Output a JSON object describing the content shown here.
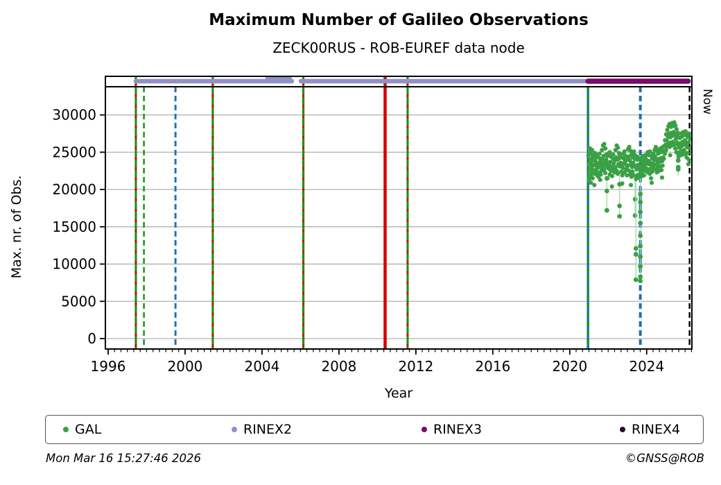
{
  "header": {
    "title": "Maximum Number of Galileo Observations",
    "subtitle": "ZECK00RUS - ROB-EUREF data node"
  },
  "footer": {
    "timestamp": "Mon Mar 16 15:27:46 2026",
    "credit": "©GNSS@ROB"
  },
  "legend": {
    "items": [
      {
        "label": "GAL",
        "color": "#3aa045"
      },
      {
        "label": "RINEX2",
        "color": "#9191c8"
      },
      {
        "label": "RINEX3",
        "color": "#7a0a6c"
      },
      {
        "label": "RINEX4",
        "color": "#2d0430"
      }
    ]
  },
  "chart_data": {
    "type": "scatter",
    "title": "Maximum Number of Galileo Observations",
    "subtitle": "ZECK00RUS - ROB-EUREF data node",
    "xlabel": "Year",
    "ylabel": "Max. nr. of Obs.",
    "xlim": [
      1995.856,
      2026.35
    ],
    "ylim": [
      0,
      33500
    ],
    "xticks": [
      1996,
      2000,
      2004,
      2008,
      2012,
      2016,
      2020,
      2024
    ],
    "yticks": [
      0,
      5000,
      10000,
      15000,
      20000,
      25000,
      30000
    ],
    "minor_tick_step_years": 0.3333,
    "grid": "horizontal-only",
    "grid_color": "#b0b0b0",
    "now_label": "Now",
    "now_year": 2026.23,
    "palette": {
      "gal": "#3aa045",
      "gal_faint": "#a9d9b0",
      "rinex2": "#9191c8",
      "rinex3": "#7a0a6c",
      "event_green": "#159415",
      "event_red": "#d40000",
      "event_blue": "#2071b5",
      "event_black": "#000000"
    },
    "events": [
      {
        "year": 1997.44,
        "type": "green-red-solid",
        "width": 3,
        "span": "outer"
      },
      {
        "year": 1997.86,
        "type": "green-dashed",
        "width": 2.5,
        "span": "axes"
      },
      {
        "year": 1999.5,
        "type": "blue-dashed",
        "width": 3,
        "span": "axes"
      },
      {
        "year": 2001.44,
        "type": "green-red-solid",
        "width": 3,
        "span": "outer"
      },
      {
        "year": 2006.15,
        "type": "green-red-solid",
        "width": 3,
        "span": "outer"
      },
      {
        "year": 2010.4,
        "type": "red-solid",
        "width": 4.5,
        "span": "outer"
      },
      {
        "year": 2011.57,
        "type": "green-red-solid",
        "width": 3,
        "span": "outer"
      },
      {
        "year": 2020.95,
        "type": "green-blue-dashed",
        "width": 3.5,
        "span": "axes"
      },
      {
        "year": 2023.67,
        "type": "blue-dashed",
        "width": 4,
        "span": "axes"
      },
      {
        "year": 2026.23,
        "type": "black-dashed",
        "width": 2.5,
        "span": "axes"
      }
    ],
    "top_bands": [
      {
        "name": "RINEX2",
        "color": "#9191c8",
        "stroke": 6.5,
        "segments": [
          {
            "from": 1997.44,
            "to": 2005.55,
            "dy": 0
          },
          {
            "from": 2004.29,
            "to": 2005.44,
            "dy": -3.5
          },
          {
            "from": 2006.02,
            "to": 2020.95,
            "dy": 0
          }
        ]
      },
      {
        "name": "RINEX3",
        "color": "#7a0a6c",
        "stroke": 7.5,
        "segments": [
          {
            "from": 2020.95,
            "to": 2026.16,
            "dy": 0
          }
        ]
      },
      {
        "name": "RINEX4",
        "color": "#2d0430",
        "stroke": 7.5,
        "segments": []
      }
    ],
    "gal_columns": [
      [
        2021.0,
        23400,
        22100,
        24600,
        21200,
        25200
      ],
      [
        2021.05,
        22800,
        24100,
        21600,
        25500
      ],
      [
        2021.1,
        23600,
        22300,
        24800,
        20900
      ],
      [
        2021.16,
        23100,
        24400,
        22000,
        25300
      ],
      [
        2021.22,
        22600,
        23900,
        21500,
        24700
      ],
      [
        2021.28,
        23300,
        22100,
        24500,
        20600
      ],
      [
        2021.34,
        23800,
        22500,
        24900
      ],
      [
        2021.4,
        23200,
        21900,
        24300,
        22800
      ],
      [
        2021.46,
        23500,
        22200,
        24600
      ],
      [
        2021.52,
        23000,
        24200,
        21700
      ],
      [
        2021.58,
        23700,
        22400,
        24800,
        21300
      ],
      [
        2021.64,
        23300,
        25300,
        22000
      ],
      [
        2021.7,
        24100,
        25900,
        22700,
        23500
      ],
      [
        2021.76,
        24500,
        26100,
        23100
      ],
      [
        2021.82,
        23900,
        25500,
        22600
      ],
      [
        2021.88,
        23400,
        24700,
        22200
      ],
      [
        2021.93,
        23000,
        21500,
        24000
      ],
      [
        2021.99,
        23600,
        22800,
        24500
      ],
      [
        2022.05,
        23200,
        22000,
        24800
      ],
      [
        2022.11,
        23700,
        22500,
        25000
      ],
      [
        2022.17,
        23100,
        21800,
        24400
      ],
      [
        2022.23,
        22800,
        24100,
        20400
      ],
      [
        2022.29,
        23500,
        22300,
        24700
      ],
      [
        2022.35,
        23900,
        25300,
        22700
      ],
      [
        2022.41,
        24300,
        25900,
        23000
      ],
      [
        2022.47,
        24000,
        25600,
        22500
      ],
      [
        2022.53,
        23400,
        24900,
        22100
      ],
      [
        2022.59,
        23100,
        20700,
        24200
      ],
      [
        2022.64,
        23600,
        22400,
        24600
      ],
      [
        2022.7,
        23200,
        21900,
        24300
      ],
      [
        2022.76,
        22900,
        24200,
        20800
      ],
      [
        2022.82,
        23500,
        22300,
        24800
      ],
      [
        2022.88,
        23800,
        22600,
        25100
      ],
      [
        2022.94,
        23300,
        21900,
        24500
      ],
      [
        2023.0,
        24000,
        25400,
        22800
      ],
      [
        2023.06,
        24400,
        25700,
        23200
      ],
      [
        2023.12,
        23900,
        25200,
        22500
      ],
      [
        2023.18,
        23400,
        24700,
        22000,
        20600
      ],
      [
        2023.24,
        23000,
        24300,
        21700
      ],
      [
        2023.3,
        23600,
        25100,
        22400
      ],
      [
        2023.36,
        23200,
        24600,
        21900
      ],
      [
        2023.42,
        23000,
        21800,
        24100
      ],
      [
        2023.48,
        22700,
        24000,
        21400
      ],
      [
        2023.54,
        23300,
        22000,
        24400
      ],
      [
        2023.6,
        22900,
        24100,
        21600
      ],
      [
        2023.66,
        22600,
        23800,
        21900
      ],
      [
        2023.72,
        23100,
        22300,
        24200
      ],
      [
        2023.78,
        22800,
        23900,
        21800
      ],
      [
        2023.84,
        23400,
        22500,
        24500
      ],
      [
        2023.9,
        23000,
        24200,
        21900
      ],
      [
        2023.96,
        23500,
        22700,
        24600
      ],
      [
        2024.02,
        23900,
        25000,
        22800
      ],
      [
        2024.08,
        23400,
        24600,
        22300
      ],
      [
        2024.14,
        23800,
        25100,
        22700
      ],
      [
        2024.2,
        23300,
        24500,
        22100
      ],
      [
        2024.26,
        22900,
        24200,
        21500,
        20900
      ],
      [
        2024.32,
        23500,
        24800,
        22400
      ],
      [
        2024.38,
        24000,
        25300,
        22900
      ],
      [
        2024.44,
        24400,
        25700,
        23300
      ],
      [
        2024.5,
        23900,
        25200,
        22700
      ],
      [
        2024.56,
        23500,
        24800,
        22300
      ],
      [
        2024.62,
        24100,
        25400,
        23000
      ],
      [
        2024.68,
        23700,
        25000,
        22500
      ],
      [
        2024.74,
        24200,
        25600,
        23100
      ],
      [
        2024.8,
        23800,
        25100,
        22600,
        21600
      ],
      [
        2024.86,
        24300,
        25800,
        23200
      ],
      [
        2024.92,
        25200,
        26600,
        24100
      ],
      [
        2024.98,
        26000,
        27400,
        24800
      ],
      [
        2025.04,
        26600,
        28000,
        25300
      ],
      [
        2025.1,
        27100,
        28500,
        25800
      ],
      [
        2025.16,
        27500,
        28800,
        26200
      ],
      [
        2025.22,
        27000,
        28400,
        25700,
        24600
      ],
      [
        2025.28,
        27600,
        28900,
        26300
      ],
      [
        2025.34,
        27200,
        28500,
        25900
      ],
      [
        2025.4,
        27700,
        29000,
        26400
      ],
      [
        2025.46,
        27300,
        28600,
        26000
      ],
      [
        2025.52,
        26800,
        28100,
        25500
      ],
      [
        2025.58,
        26300,
        27600,
        25000
      ],
      [
        2025.63,
        26000,
        24800,
        27200
      ],
      [
        2025.69,
        25600,
        26900,
        24400
      ],
      [
        2025.75,
        26200,
        27500,
        25000
      ],
      [
        2025.81,
        25800,
        27100,
        24600
      ],
      [
        2025.87,
        26400,
        27700,
        25200
      ],
      [
        2025.93,
        26000,
        27300,
        24700
      ],
      [
        2025.99,
        26600,
        27800,
        25300
      ],
      [
        2026.05,
        26100,
        27400,
        24800
      ],
      [
        2026.11,
        25700,
        27000,
        24300
      ],
      [
        2026.17,
        26300,
        27500,
        24900,
        23400
      ],
      [
        2026.23,
        25500,
        26800,
        24000
      ]
    ],
    "gal_spikes": [
      {
        "year": 2021.93,
        "values": [
          21500,
          19800,
          17200
        ]
      },
      {
        "year": 2022.59,
        "values": [
          20700,
          17800,
          16400
        ]
      },
      {
        "year": 2023.4,
        "values": [
          18700,
          16500
        ]
      },
      {
        "year": 2023.44,
        "values": [
          12100,
          11300,
          7900
        ]
      },
      {
        "year": 2023.67,
        "values": [
          19400,
          18300,
          17000,
          15500,
          13800,
          12400,
          11000,
          9700,
          8300,
          7750
        ]
      },
      {
        "year": 2025.64,
        "values": [
          24800,
          23900,
          23000,
          22700
        ]
      }
    ]
  }
}
